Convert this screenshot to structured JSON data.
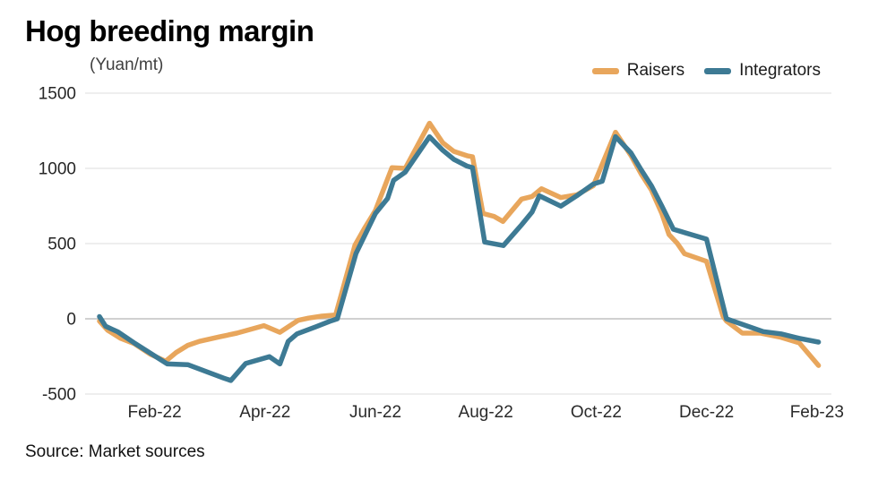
{
  "title": "Hog breeding margin",
  "y_axis_unit": "(Yuan/mt)",
  "source": "Source: Market sources",
  "legend": [
    {
      "label": "Raisers",
      "color": "#E8A65C"
    },
    {
      "label": "Integrators",
      "color": "#3D7A94"
    }
  ],
  "chart_data": {
    "type": "line",
    "title": "Hog breeding margin",
    "ylabel": "(Yuan/mt)",
    "xlabel": "",
    "x_unit": "months since Jan-2022 (decimal)",
    "ylim": [
      -500,
      1500
    ],
    "grid": "horizontal",
    "zero_line_color": "#b5b5b5",
    "grid_color": "#e4e4e4",
    "legend_position": "top-right",
    "y_ticks": [
      1500,
      1000,
      500,
      0,
      -500
    ],
    "x_ticks": [
      {
        "m": 1,
        "label": "Feb-22"
      },
      {
        "m": 3,
        "label": "Apr-22"
      },
      {
        "m": 5,
        "label": "Jun-22"
      },
      {
        "m": 7,
        "label": "Aug-22"
      },
      {
        "m": 9,
        "label": "Oct-22"
      },
      {
        "m": 11,
        "label": "Dec-22"
      },
      {
        "m": 13,
        "label": "Feb-23"
      }
    ],
    "series": [
      {
        "name": "Raisers",
        "color": "#E8A65C",
        "points": [
          [
            0.0,
            -15
          ],
          [
            0.15,
            -76
          ],
          [
            0.38,
            -129
          ],
          [
            0.63,
            -165
          ],
          [
            0.92,
            -235
          ],
          [
            1.2,
            -282
          ],
          [
            1.39,
            -224
          ],
          [
            1.6,
            -176
          ],
          [
            1.81,
            -150
          ],
          [
            2.17,
            -120
          ],
          [
            2.49,
            -95
          ],
          [
            2.98,
            -45
          ],
          [
            3.27,
            -90
          ],
          [
            3.6,
            -10
          ],
          [
            3.79,
            5
          ],
          [
            4.03,
            18
          ],
          [
            4.28,
            25
          ],
          [
            4.63,
            490
          ],
          [
            4.8,
            600
          ],
          [
            5.0,
            720
          ],
          [
            5.3,
            1005
          ],
          [
            5.54,
            1000
          ],
          [
            5.98,
            1300
          ],
          [
            6.22,
            1170
          ],
          [
            6.42,
            1113
          ],
          [
            6.66,
            1084
          ],
          [
            6.76,
            1077
          ],
          [
            6.95,
            700
          ],
          [
            7.15,
            681
          ],
          [
            7.31,
            647
          ],
          [
            7.65,
            796
          ],
          [
            7.84,
            813
          ],
          [
            8.01,
            864
          ],
          [
            8.36,
            806
          ],
          [
            8.65,
            824
          ],
          [
            8.95,
            885
          ],
          [
            9.35,
            1240
          ],
          [
            9.63,
            1086
          ],
          [
            9.82,
            960
          ],
          [
            10.0,
            857
          ],
          [
            10.19,
            700
          ],
          [
            10.32,
            560
          ],
          [
            10.47,
            501
          ],
          [
            10.6,
            433
          ],
          [
            11.0,
            382
          ],
          [
            11.3,
            16
          ],
          [
            11.36,
            -14
          ],
          [
            11.65,
            -95
          ],
          [
            11.98,
            -95
          ],
          [
            12.35,
            -123
          ],
          [
            12.68,
            -160
          ],
          [
            13.03,
            -310
          ]
        ]
      },
      {
        "name": "Integrators",
        "color": "#3D7A94",
        "points": [
          [
            0.0,
            15
          ],
          [
            0.11,
            -49
          ],
          [
            0.34,
            -88
          ],
          [
            0.63,
            -160
          ],
          [
            1.23,
            -300
          ],
          [
            1.6,
            -305
          ],
          [
            2.25,
            -394
          ],
          [
            2.38,
            -410
          ],
          [
            2.65,
            -297
          ],
          [
            3.08,
            -252
          ],
          [
            3.27,
            -300
          ],
          [
            3.42,
            -150
          ],
          [
            3.58,
            -100
          ],
          [
            3.92,
            -53
          ],
          [
            4.2,
            -13
          ],
          [
            4.31,
            0
          ],
          [
            4.65,
            435
          ],
          [
            5.0,
            700
          ],
          [
            5.22,
            800
          ],
          [
            5.33,
            920
          ],
          [
            5.54,
            975
          ],
          [
            5.98,
            1210
          ],
          [
            6.22,
            1120
          ],
          [
            6.42,
            1060
          ],
          [
            6.66,
            1015
          ],
          [
            6.76,
            1005
          ],
          [
            6.98,
            510
          ],
          [
            7.32,
            487
          ],
          [
            7.65,
            625
          ],
          [
            7.84,
            710
          ],
          [
            7.97,
            818
          ],
          [
            8.36,
            749
          ],
          [
            8.65,
            818
          ],
          [
            8.95,
            896
          ],
          [
            9.11,
            914
          ],
          [
            9.35,
            1211
          ],
          [
            9.63,
            1103
          ],
          [
            9.82,
            988
          ],
          [
            10.0,
            885
          ],
          [
            10.19,
            750
          ],
          [
            10.4,
            595
          ],
          [
            11.0,
            530
          ],
          [
            11.36,
            0
          ],
          [
            12.03,
            -85
          ],
          [
            12.35,
            -100
          ],
          [
            12.68,
            -130
          ],
          [
            13.03,
            -155
          ]
        ]
      }
    ]
  }
}
